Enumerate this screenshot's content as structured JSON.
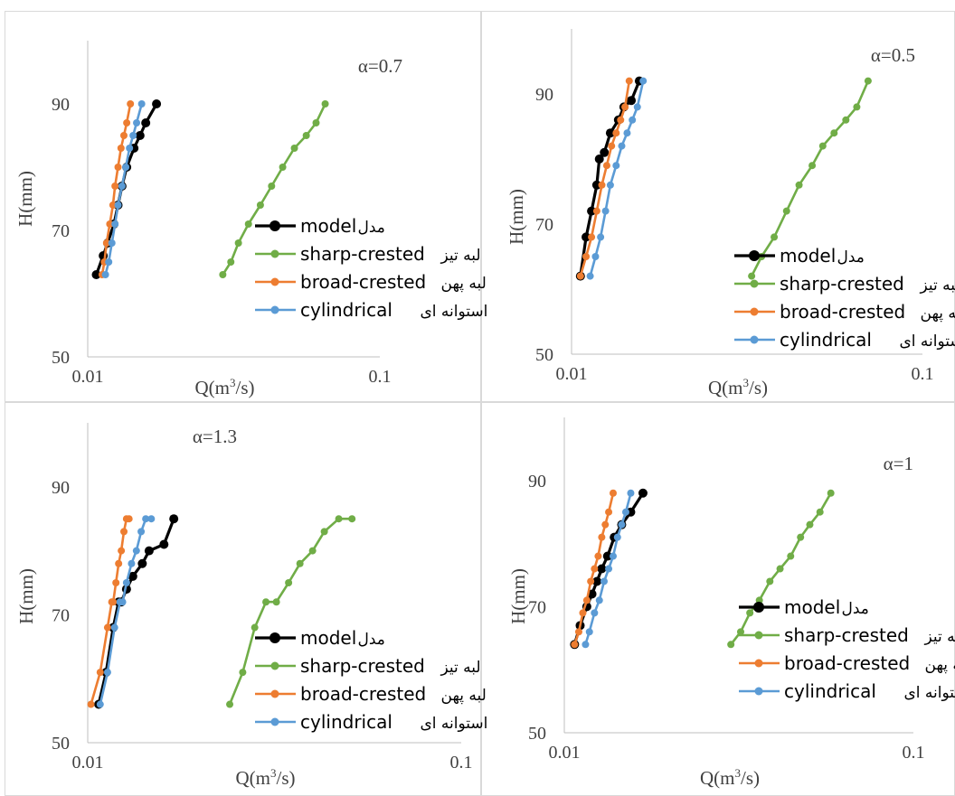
{
  "colors": {
    "model": "#000000",
    "sharp": "#70ad47",
    "broad": "#ed7d31",
    "cyl": "#5b9bd5",
    "axis": "#bfbfbf",
    "text": "#404040"
  },
  "chart_data": [
    {
      "type": "scatter",
      "title": "α=0.7",
      "xlabel": "Q(m³/s)",
      "ylabel": "H(mm)",
      "xscale": "log",
      "xlim": [
        0.01,
        0.1
      ],
      "ylim": [
        50,
        100
      ],
      "xticks": [
        "0.01",
        "0.1"
      ],
      "yticks": [
        "50",
        "70",
        "90"
      ],
      "legend_position": "bottom-right",
      "series": [
        {
          "name": "model",
          "label_fa": "مدل",
          "color": "#000000",
          "x": [
            0.0107,
            0.0113,
            0.0117,
            0.0123,
            0.0127,
            0.0131,
            0.0136,
            0.0144,
            0.0151,
            0.0158,
            0.0172
          ],
          "y": [
            63,
            66,
            68,
            71,
            74,
            77,
            80,
            83,
            85,
            87,
            90
          ]
        },
        {
          "name": "sharp-crested",
          "label_fa": "لبه تیز",
          "color": "#70ad47",
          "x": [
            0.029,
            0.0309,
            0.0328,
            0.0355,
            0.039,
            0.0426,
            0.0465,
            0.051,
            0.056,
            0.0605,
            0.065
          ],
          "y": [
            63,
            65,
            68,
            71,
            74,
            77,
            80,
            83,
            85,
            87,
            90
          ]
        },
        {
          "name": "broad-crested",
          "label_fa": "لبه پهن",
          "color": "#ed7d31",
          "x": [
            0.0112,
            0.0114,
            0.0116,
            0.0119,
            0.0122,
            0.0124,
            0.0127,
            0.013,
            0.0133,
            0.0136,
            0.014
          ],
          "y": [
            63,
            65,
            68,
            71,
            74,
            77,
            80,
            83,
            85,
            87,
            90
          ]
        },
        {
          "name": "cylindrical",
          "label_fa": "استوانه ای",
          "color": "#5b9bd5",
          "x": [
            0.0115,
            0.0118,
            0.0121,
            0.0124,
            0.0127,
            0.0131,
            0.0135,
            0.0139,
            0.0143,
            0.0147,
            0.0153
          ],
          "y": [
            63,
            65,
            68,
            71,
            74,
            77,
            80,
            83,
            85,
            87,
            90
          ]
        }
      ]
    },
    {
      "type": "scatter",
      "title": "α=0.5",
      "xlabel": "Q(m³/s)",
      "ylabel": "H(mm)",
      "xscale": "log",
      "xlim": [
        0.01,
        0.1
      ],
      "ylim": [
        50,
        100
      ],
      "xticks": [
        "0.01",
        "0.1"
      ],
      "yticks": [
        "50",
        "70",
        "90"
      ],
      "legend_position": "bottom-right",
      "series": [
        {
          "name": "model",
          "label_fa": "مدل",
          "color": "#000000",
          "x": [
            0.0106,
            0.011,
            0.0114,
            0.0118,
            0.012,
            0.0124,
            0.0129,
            0.0136,
            0.0141,
            0.0148,
            0.0156
          ],
          "y": [
            62,
            68,
            72,
            76,
            80,
            81,
            84,
            86,
            88,
            89,
            92
          ]
        },
        {
          "name": "sharp-crested",
          "label_fa": "لبه تیز",
          "color": "#70ad47",
          "x": [
            0.0326,
            0.0348,
            0.0378,
            0.041,
            0.0445,
            0.0485,
            0.052,
            0.056,
            0.0605,
            0.065,
            0.07
          ],
          "y": [
            62,
            65,
            68,
            72,
            76,
            79,
            82,
            84,
            86,
            88,
            92
          ]
        },
        {
          "name": "broad-crested",
          "label_fa": "لبه پهن",
          "color": "#ed7d31",
          "x": [
            0.0106,
            0.011,
            0.0114,
            0.0118,
            0.0122,
            0.0126,
            0.013,
            0.0134,
            0.0138,
            0.0142,
            0.0146
          ],
          "y": [
            62,
            65,
            68,
            72,
            76,
            79,
            82,
            84,
            86,
            88,
            92
          ]
        },
        {
          "name": "cylindrical",
          "label_fa": "استوانه ای",
          "color": "#5b9bd5",
          "x": [
            0.0113,
            0.0117,
            0.0121,
            0.0125,
            0.0129,
            0.0134,
            0.0139,
            0.0144,
            0.0149,
            0.0154,
            0.016
          ],
          "y": [
            62,
            65,
            68,
            72,
            76,
            79,
            82,
            84,
            86,
            88,
            92
          ]
        }
      ]
    },
    {
      "type": "scatter",
      "title": "α=1.3",
      "xlabel": "Q(m³/s)",
      "ylabel": "H(mm)",
      "xscale": "log",
      "xlim": [
        0.01,
        0.1
      ],
      "ylim": [
        50,
        100
      ],
      "xticks": [
        "0.01",
        "0.1"
      ],
      "yticks": [
        "50",
        "70",
        "90"
      ],
      "legend_position": "bottom-right",
      "series": [
        {
          "name": "model",
          "label_fa": "مدل",
          "color": "#000000",
          "x": [
            0.0107,
            0.0112,
            0.0117,
            0.0121,
            0.0123,
            0.0127,
            0.0132,
            0.014,
            0.0146,
            0.016,
            0.017
          ],
          "y": [
            56,
            61,
            68,
            72,
            72,
            74,
            76,
            78,
            80,
            81,
            85
          ]
        },
        {
          "name": "sharp-crested",
          "label_fa": "لبه تیز",
          "color": "#70ad47",
          "x": [
            0.024,
            0.026,
            0.028,
            0.03,
            0.032,
            0.0345,
            0.037,
            0.04,
            0.043,
            0.047,
            0.051
          ],
          "y": [
            56,
            61,
            68,
            72,
            72,
            75,
            78,
            80,
            83,
            85,
            85
          ]
        },
        {
          "name": "broad-crested",
          "label_fa": "لبه پهن",
          "color": "#ed7d31",
          "x": [
            0.0102,
            0.0108,
            0.0113,
            0.0116,
            0.0117,
            0.0119,
            0.0121,
            0.0123,
            0.0125,
            0.0127,
            0.0129
          ],
          "y": [
            56,
            61,
            68,
            72,
            72,
            75,
            78,
            80,
            83,
            85,
            85
          ]
        },
        {
          "name": "cylindrical",
          "label_fa": "استوانه ای",
          "color": "#5b9bd5",
          "x": [
            0.0108,
            0.0113,
            0.0118,
            0.0122,
            0.0124,
            0.0127,
            0.0131,
            0.0135,
            0.0139,
            0.0143,
            0.0148
          ],
          "y": [
            56,
            61,
            68,
            72,
            72,
            75,
            78,
            80,
            83,
            85,
            85
          ]
        }
      ]
    },
    {
      "type": "scatter",
      "title": "α=1",
      "xlabel": "Q(m³/s)",
      "ylabel": "H(mm)",
      "xscale": "log",
      "xlim": [
        0.01,
        0.1
      ],
      "ylim": [
        50,
        100
      ],
      "xticks": [
        "0.01",
        "0.1"
      ],
      "yticks": [
        "50",
        "70",
        "90"
      ],
      "legend_position": "bottom-right",
      "series": [
        {
          "name": "model",
          "label_fa": "مدل",
          "color": "#000000",
          "x": [
            0.0107,
            0.0111,
            0.0116,
            0.012,
            0.0124,
            0.0128,
            0.0133,
            0.0139,
            0.0146,
            0.0155,
            0.0168
          ],
          "y": [
            64,
            67,
            70,
            72,
            74,
            76,
            78,
            81,
            83,
            85,
            88
          ]
        },
        {
          "name": "sharp-crested",
          "label_fa": "لبه تیز",
          "color": "#70ad47",
          "x": [
            0.03,
            0.032,
            0.034,
            0.0362,
            0.0388,
            0.0415,
            0.0445,
            0.0475,
            0.0505,
            0.054,
            0.058
          ],
          "y": [
            64,
            66,
            69,
            71,
            74,
            76,
            78,
            81,
            83,
            85,
            88
          ]
        },
        {
          "name": "broad-crested",
          "label_fa": "لبه پهن",
          "color": "#ed7d31",
          "x": [
            0.0107,
            0.011,
            0.0113,
            0.0116,
            0.0119,
            0.0122,
            0.0125,
            0.0128,
            0.0131,
            0.0134,
            0.0138
          ],
          "y": [
            64,
            66,
            69,
            71,
            74,
            76,
            78,
            81,
            83,
            85,
            88
          ]
        },
        {
          "name": "cylindrical",
          "label_fa": "استوانه ای",
          "color": "#5b9bd5",
          "x": [
            0.0115,
            0.0118,
            0.0122,
            0.0126,
            0.013,
            0.0134,
            0.0138,
            0.0142,
            0.0146,
            0.015,
            0.0155
          ],
          "y": [
            64,
            66,
            69,
            71,
            74,
            76,
            78,
            81,
            83,
            85,
            88
          ]
        }
      ]
    }
  ]
}
